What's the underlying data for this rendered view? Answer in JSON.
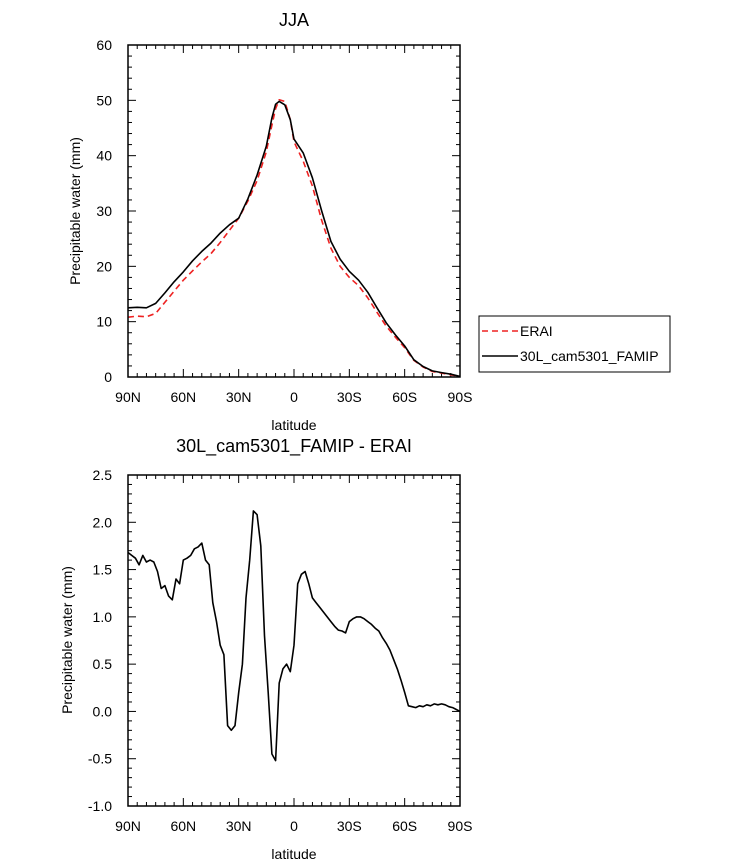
{
  "chart_data": [
    {
      "type": "line",
      "title": "JJA",
      "xlabel": "latitude",
      "ylabel": "Precipitable water (mm)",
      "xlim": [
        90,
        -90
      ],
      "ylim": [
        0,
        60
      ],
      "x_ticks": [
        {
          "value": 90,
          "label": "90N"
        },
        {
          "value": 60,
          "label": "60N"
        },
        {
          "value": 30,
          "label": "30N"
        },
        {
          "value": 0,
          "label": "0"
        },
        {
          "value": -30,
          "label": "30S"
        },
        {
          "value": -60,
          "label": "60S"
        },
        {
          "value": -90,
          "label": "90S"
        }
      ],
      "y_ticks": [
        {
          "value": 0,
          "label": "0"
        },
        {
          "value": 10,
          "label": "10"
        },
        {
          "value": 20,
          "label": "20"
        },
        {
          "value": 30,
          "label": "30"
        },
        {
          "value": 40,
          "label": "40"
        },
        {
          "value": 50,
          "label": "50"
        },
        {
          "value": 60,
          "label": "60"
        }
      ],
      "legend_position": "right-center",
      "series": [
        {
          "name": "ERAI",
          "color": "#ee2222",
          "dash": "dashed",
          "x": [
            90,
            85,
            80,
            75,
            70,
            65,
            60,
            55,
            50,
            45,
            40,
            35,
            30,
            25,
            20,
            15,
            12,
            10,
            8,
            5,
            2,
            0,
            -5,
            -10,
            -15,
            -20,
            -25,
            -30,
            -35,
            -40,
            -45,
            -50,
            -55,
            -60,
            -65,
            -70,
            -75,
            -80,
            -85,
            -90
          ],
          "y": [
            10.8,
            11,
            10.9,
            11.5,
            13.5,
            15.5,
            17.5,
            19.2,
            20.8,
            22.3,
            24.3,
            26.5,
            28.7,
            31.8,
            35.5,
            40.7,
            45.5,
            48.5,
            50.1,
            49.8,
            46.5,
            42.5,
            39,
            34.5,
            28.3,
            23.3,
            20,
            18,
            16.5,
            14.3,
            11.7,
            9.2,
            7.2,
            5.3,
            3,
            1.8,
            1,
            0.7,
            0.4,
            0.1
          ]
        },
        {
          "name": "30L_cam5301_FAMIP",
          "color": "#000000",
          "dash": "solid",
          "x": [
            90,
            85,
            80,
            75,
            70,
            65,
            60,
            55,
            50,
            45,
            40,
            35,
            30,
            25,
            20,
            15,
            12,
            10,
            8,
            5,
            2,
            0,
            -5,
            -10,
            -15,
            -20,
            -25,
            -30,
            -35,
            -40,
            -45,
            -50,
            -55,
            -60,
            -65,
            -70,
            -75,
            -80,
            -85,
            -90
          ],
          "y": [
            12.5,
            12.6,
            12.5,
            13.3,
            15.2,
            17.2,
            19,
            21,
            22.7,
            24.2,
            26,
            27.5,
            28.7,
            32.2,
            36.5,
            41.7,
            46.8,
            49.3,
            49.8,
            49.2,
            46.5,
            43,
            40.5,
            36,
            30,
            24.5,
            21.3,
            19.1,
            17.5,
            15.3,
            12.5,
            9.8,
            7.6,
            5.6,
            3.1,
            1.9,
            1.1,
            0.8,
            0.5,
            0.1
          ]
        }
      ]
    },
    {
      "type": "line",
      "title": "30L_cam5301_FAMIP - ERAI",
      "xlabel": "latitude",
      "ylabel": "Precipitable water (mm)",
      "xlim": [
        90,
        -90
      ],
      "ylim": [
        -1.0,
        2.5
      ],
      "x_ticks": [
        {
          "value": 90,
          "label": "90N"
        },
        {
          "value": 60,
          "label": "60N"
        },
        {
          "value": 30,
          "label": "30N"
        },
        {
          "value": 0,
          "label": "0"
        },
        {
          "value": -30,
          "label": "30S"
        },
        {
          "value": -60,
          "label": "60S"
        },
        {
          "value": -90,
          "label": "90S"
        }
      ],
      "y_ticks": [
        {
          "value": -1.0,
          "label": "-1.0"
        },
        {
          "value": -0.5,
          "label": "-0.5"
        },
        {
          "value": 0.0,
          "label": "0.0"
        },
        {
          "value": 0.5,
          "label": "0.5"
        },
        {
          "value": 1.0,
          "label": "1.0"
        },
        {
          "value": 1.5,
          "label": "1.5"
        },
        {
          "value": 2.0,
          "label": "2.0"
        },
        {
          "value": 2.5,
          "label": "2.5"
        }
      ],
      "series": [
        {
          "name": "30L_cam5301_FAMIP - ERAI",
          "color": "#000000",
          "dash": "solid",
          "x": [
            90,
            88,
            86,
            84,
            82,
            80,
            78,
            76,
            74,
            72,
            70,
            68,
            66,
            64,
            62,
            60,
            58,
            56,
            54,
            52,
            50,
            48,
            46,
            44,
            42,
            40,
            38,
            36,
            34,
            32,
            30,
            28,
            26,
            24,
            22,
            20,
            18,
            16,
            14,
            12,
            10,
            8,
            6,
            4,
            2,
            0,
            -2,
            -4,
            -6,
            -8,
            -10,
            -12,
            -14,
            -16,
            -18,
            -20,
            -22,
            -24,
            -26,
            -28,
            -30,
            -32,
            -34,
            -36,
            -38,
            -40,
            -42,
            -44,
            -46,
            -48,
            -50,
            -52,
            -54,
            -56,
            -58,
            -60,
            -62,
            -64,
            -66,
            -68,
            -70,
            -72,
            -74,
            -76,
            -78,
            -80,
            -82,
            -84,
            -86,
            -88,
            -90
          ],
          "y": [
            1.68,
            1.65,
            1.62,
            1.55,
            1.65,
            1.58,
            1.6,
            1.58,
            1.48,
            1.3,
            1.33,
            1.22,
            1.18,
            1.4,
            1.35,
            1.6,
            1.62,
            1.65,
            1.72,
            1.74,
            1.78,
            1.6,
            1.55,
            1.15,
            0.95,
            0.7,
            0.6,
            -0.15,
            -0.2,
            -0.15,
            0.2,
            0.5,
            1.2,
            1.6,
            2.12,
            2.08,
            1.75,
            0.8,
            0.2,
            -0.45,
            -0.52,
            0.3,
            0.45,
            0.5,
            0.42,
            0.7,
            1.35,
            1.45,
            1.48,
            1.35,
            1.2,
            1.15,
            1.1,
            1.05,
            1.0,
            0.95,
            0.9,
            0.86,
            0.85,
            0.83,
            0.95,
            0.98,
            1.0,
            1.0,
            0.98,
            0.95,
            0.92,
            0.88,
            0.85,
            0.78,
            0.72,
            0.65,
            0.55,
            0.45,
            0.33,
            0.2,
            0.06,
            0.05,
            0.04,
            0.06,
            0.05,
            0.07,
            0.06,
            0.08,
            0.07,
            0.08,
            0.07,
            0.05,
            0.04,
            0.02,
            0.0
          ]
        }
      ]
    }
  ]
}
